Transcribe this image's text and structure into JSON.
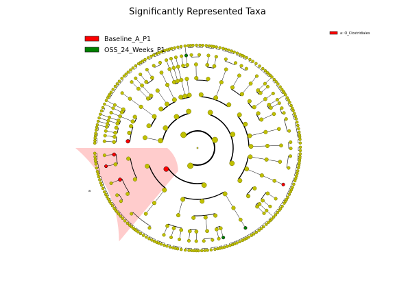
{
  "chart_data": {
    "type": "cladogram",
    "title": "Significantly Represented Taxa",
    "legend": {
      "placement": "top-left",
      "entries": [
        {
          "label": "Baseline_A_P1",
          "color": "#ff0000"
        },
        {
          "label": "OSS_24_Weeks_P1",
          "color": "#008000"
        }
      ]
    },
    "annotation_legend": {
      "placement": "top-right",
      "entries": [
        {
          "marker": "a",
          "label": "a: O_Clostridiales",
          "color": "#ff0000"
        }
      ]
    },
    "highlighted_clades": [
      {
        "marker": "a",
        "group": "Baseline_A_P1",
        "color": "#ff0000"
      }
    ],
    "node_colors": {
      "non_significant": "#c0c000",
      "Baseline_A_P1": "#ff0000",
      "OSS_24_Weeks_P1": "#008000"
    },
    "levels": 7,
    "significant_nodes": {
      "Baseline_A_P1": 6,
      "OSS_24_Weeks_P1": 3
    }
  }
}
